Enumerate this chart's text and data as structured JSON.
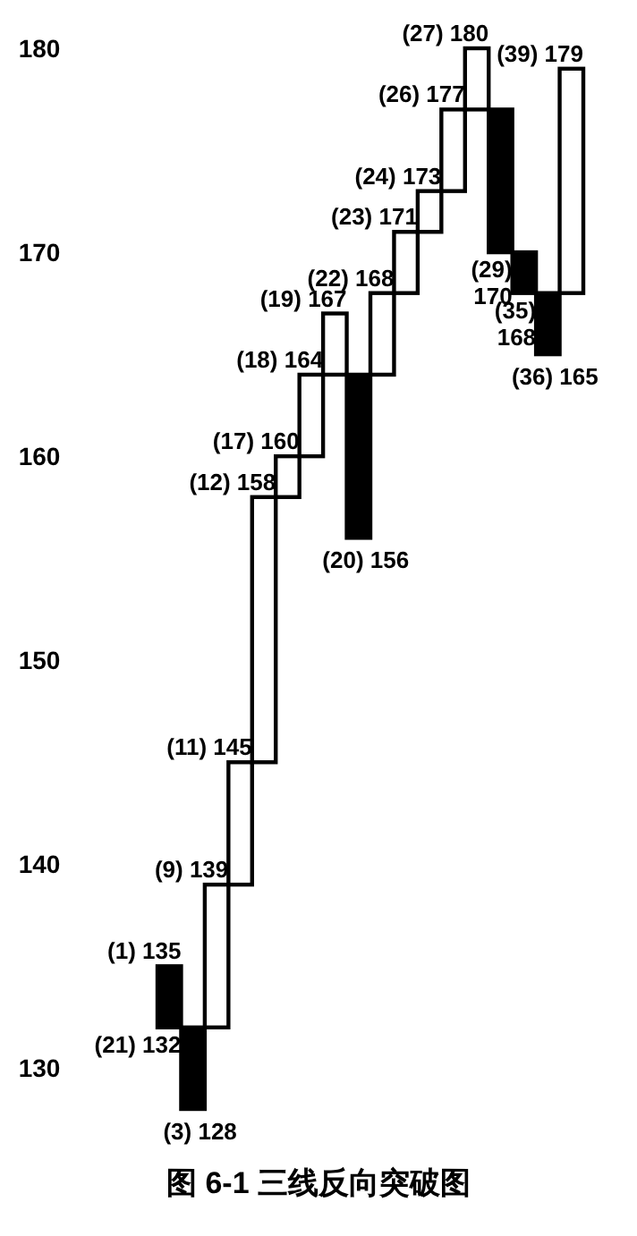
{
  "chart_data": {
    "type": "bar",
    "title": "图 6-1   三线反向突破图",
    "categories": [
      null,
      null,
      null,
      null,
      null,
      null,
      null,
      null,
      null,
      null,
      null,
      null,
      null,
      null,
      null,
      null,
      null,
      null
    ],
    "base": [
      135,
      132,
      132,
      139,
      145,
      158,
      160,
      164,
      164,
      164,
      168,
      171,
      173,
      177,
      177,
      170,
      168,
      168
    ],
    "values": [
      -3,
      -4,
      7,
      6,
      13,
      2,
      4,
      3,
      -8,
      4,
      3,
      2,
      4,
      3,
      -7,
      -2,
      -3,
      11
    ],
    "colors": [
      "#000000",
      "#000000",
      "#ffffff",
      "#ffffff",
      "#ffffff",
      "#ffffff",
      "#ffffff",
      "#ffffff",
      "#000000",
      "#ffffff",
      "#ffffff",
      "#ffffff",
      "#ffffff",
      "#ffffff",
      "#000000",
      "#000000",
      "#000000",
      "#ffffff"
    ],
    "value_labels": [
      "(21) 132",
      "(3) 128",
      "(9) 139",
      "(11) 145",
      "(12) 158",
      "(17) 160",
      "(18) 164",
      "(19) 167",
      "(20) 156",
      "(22) 168",
      "(23) 171",
      "(24) 173",
      "(26) 177",
      "(27) 180",
      "(29) 170",
      "(35) 168",
      "(36) 165",
      "(39) 179"
    ],
    "annotations": [
      "(1) 135"
    ],
    "ylim": [
      128,
      180
    ],
    "yticks": [
      130,
      140,
      150,
      160,
      170,
      180
    ],
    "tick_labels": "y",
    "grid": false
  }
}
